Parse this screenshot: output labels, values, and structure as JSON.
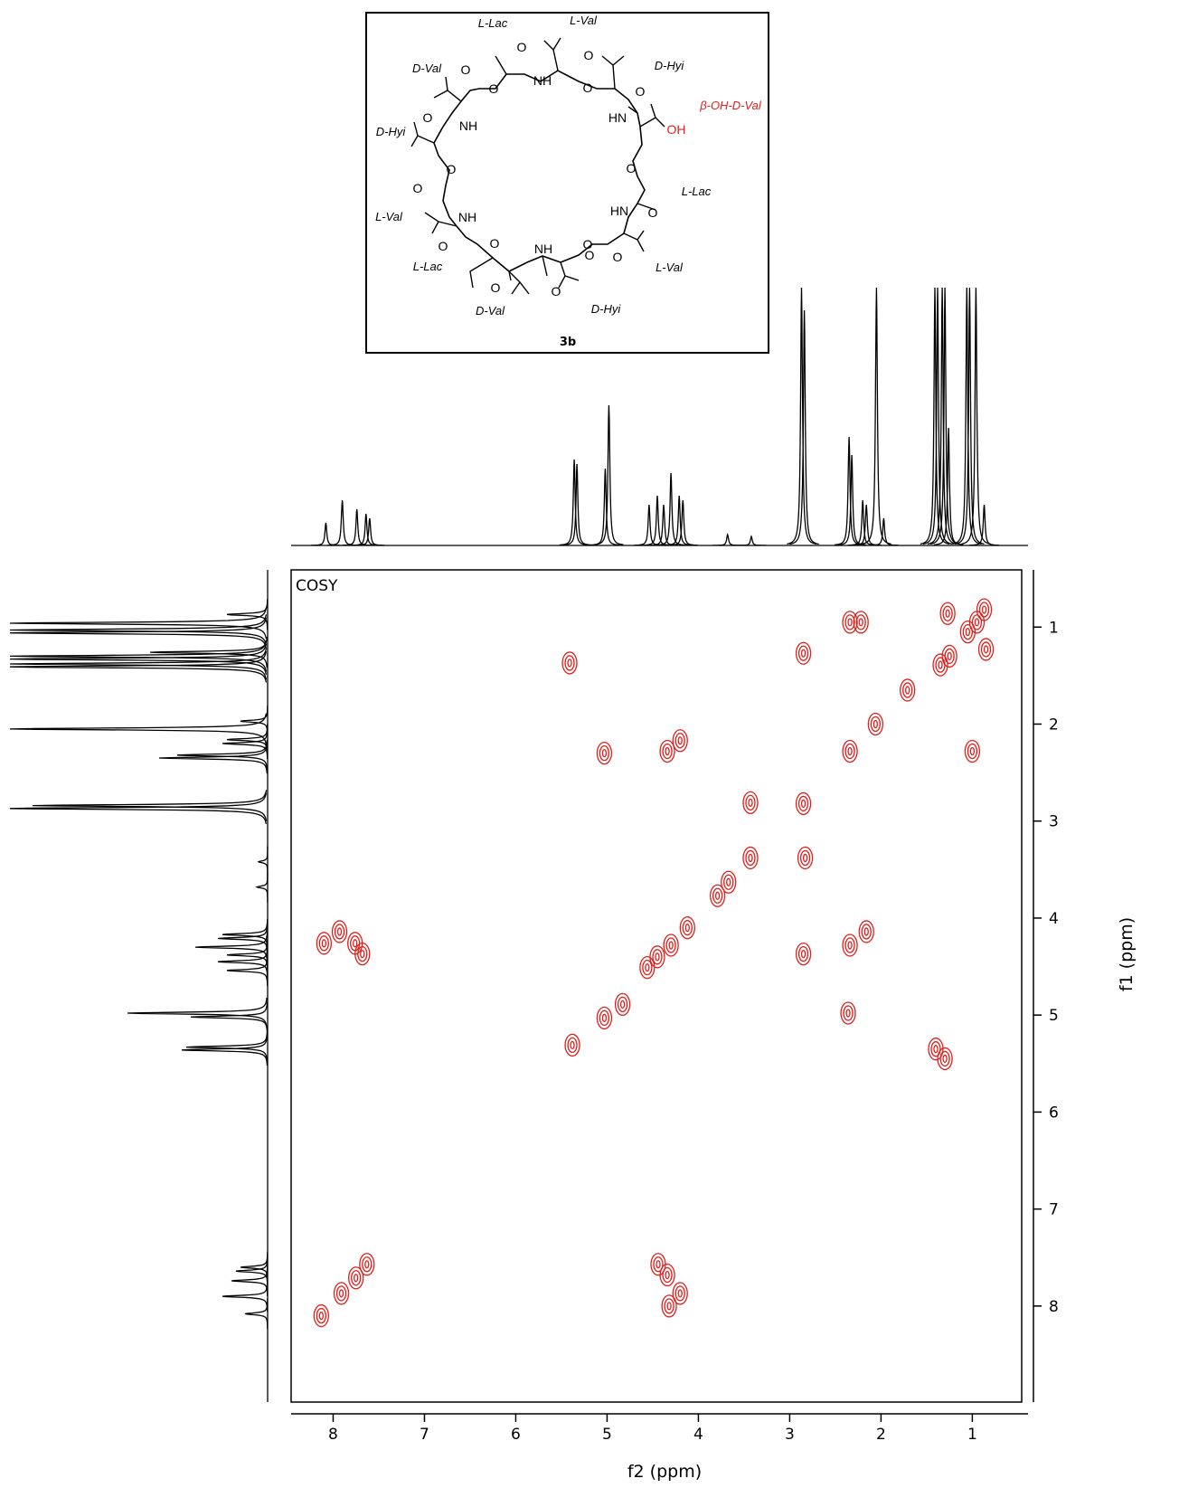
{
  "chart_data": {
    "type": "cosy",
    "label": "COSY",
    "xlabel": "f2 (ppm)",
    "ylabel": "f1 (ppm)",
    "xlim": [
      8.46,
      0.39
    ],
    "ylim": [
      0.41,
      8.99
    ],
    "xticks": [
      8,
      7,
      6,
      5,
      4,
      3,
      2,
      1
    ],
    "yticks": [
      1,
      2,
      3,
      4,
      5,
      6,
      7,
      8
    ],
    "color": "#e0201c",
    "x": [
      0.87,
      0.95,
      1.05,
      1.25,
      1.35,
      1.27,
      2.22,
      2.34,
      5.41,
      2.85,
      0.85,
      1.0,
      5.03,
      4.34,
      4.2,
      2.34,
      2.06,
      1.71,
      2.85,
      3.43,
      3.43,
      2.83,
      3.67,
      3.79,
      8.1,
      7.93,
      7.76,
      7.68,
      2.85,
      2.34,
      2.16,
      4.56,
      4.45,
      4.3,
      4.12,
      4.83,
      5.03,
      5.38,
      2.36,
      1.4,
      1.3,
      8.13,
      7.91,
      7.75,
      7.63,
      4.44,
      4.34,
      4.2,
      4.32
    ],
    "values": [
      0.82,
      0.95,
      1.05,
      1.3,
      1.39,
      0.86,
      0.95,
      0.95,
      1.37,
      1.27,
      1.23,
      2.28,
      2.3,
      2.28,
      2.17,
      2.28,
      2.0,
      1.65,
      2.82,
      2.81,
      3.38,
      3.38,
      3.63,
      3.77,
      4.26,
      4.14,
      4.26,
      4.37,
      4.37,
      4.28,
      4.14,
      4.51,
      4.4,
      4.28,
      4.1,
      4.89,
      5.03,
      5.31,
      4.98,
      5.35,
      5.45,
      8.1,
      7.87,
      7.71,
      7.57,
      7.57,
      7.68,
      7.87,
      8.0
    ],
    "projection": {
      "color": "#000000",
      "ylim": [
        0,
        285
      ],
      "x": [
        8.08,
        7.9,
        7.74,
        7.64,
        7.6,
        5.36,
        5.33,
        5.02,
        4.98,
        4.54,
        4.45,
        4.38,
        4.3,
        4.21,
        4.17,
        3.68,
        3.42,
        2.87,
        2.84,
        2.35,
        2.32,
        2.2,
        2.16,
        2.05,
        1.97,
        1.41,
        1.38,
        1.33,
        1.3,
        1.26,
        1.06,
        1.03,
        0.96,
        0.87
      ],
      "values": [
        25,
        50,
        40,
        35,
        30,
        95,
        90,
        85,
        155,
        45,
        55,
        45,
        80,
        55,
        50,
        12,
        10,
        285,
        260,
        120,
        100,
        50,
        45,
        285,
        30,
        285,
        285,
        285,
        285,
        130,
        285,
        285,
        285,
        45
      ]
    }
  },
  "structure": {
    "compound": "3b",
    "residues": [
      "L-Lac",
      "L-Val",
      "D-Val",
      "D-Hyi",
      "β-OH-D-Val",
      "D-Hyi",
      "L-Lac",
      "L-Val",
      "L-Lac",
      "L-Val",
      "D-Val",
      "D-Hyi"
    ],
    "atoms": [
      "O",
      "O",
      "O",
      "O",
      "NH",
      "O",
      "O",
      "NH",
      "HN",
      "OH",
      "O",
      "O",
      "NH",
      "O",
      "O",
      "NH",
      "O",
      "O",
      "O",
      "O",
      "O",
      "HN",
      "O",
      "O",
      "O"
    ]
  }
}
